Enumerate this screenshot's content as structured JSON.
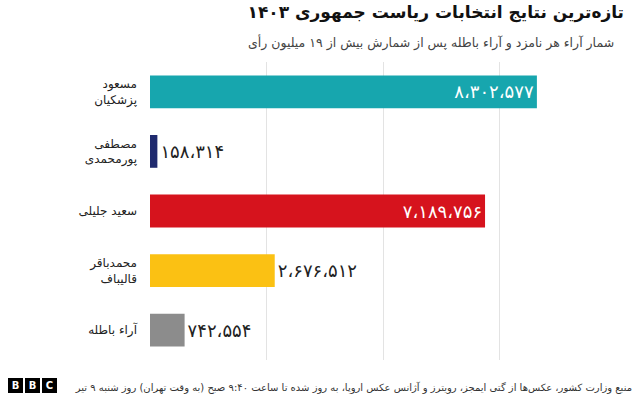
{
  "chart_data": {
    "type": "bar",
    "orientation": "horizontal",
    "title": "تازه‌ترین نتایج انتخابات ریاست جمهوری ۱۴۰۳",
    "subtitle": "شمار آراء هر نامزد و آراء باطله پس از شمارش بیش از ۱۹ میلیون رأی",
    "categories": [
      "مسعود پزشکیان",
      "مصطفی پورمحمدی",
      "سعید جلیلی",
      "محمدباقر قالیباف",
      "آراء باطله"
    ],
    "values": [
      8302577,
      158314,
      7189756,
      2676512,
      742554
    ],
    "value_labels": [
      "۸،۳۰۲،۵۷۷",
      "۱۵۸،۳۱۴",
      "۷،۱۸۹،۷۵۶",
      "۲،۶۷۶،۵۱۲",
      "۷۴۲،۵۵۴"
    ],
    "colors": [
      "#17a6ae",
      "#1f2a6e",
      "#d6131d",
      "#fbc113",
      "#8c8c8c"
    ],
    "xlim": [
      0,
      10000000
    ],
    "xticks": [
      0,
      2500000,
      5000000,
      7500000,
      10000000
    ],
    "grid": true,
    "data_labels": true,
    "tick_labels": "y"
  },
  "footer": {
    "source": "منبع وزارت کشور، عکس‌ها از گتی ایمجز، رویترز و آژانس عکس اروپا، به روز شده تا ساعت ۹:۴۰ صبح (به وقت تهران) روز شنبه ۹ تیر",
    "logo": "BBC"
  }
}
